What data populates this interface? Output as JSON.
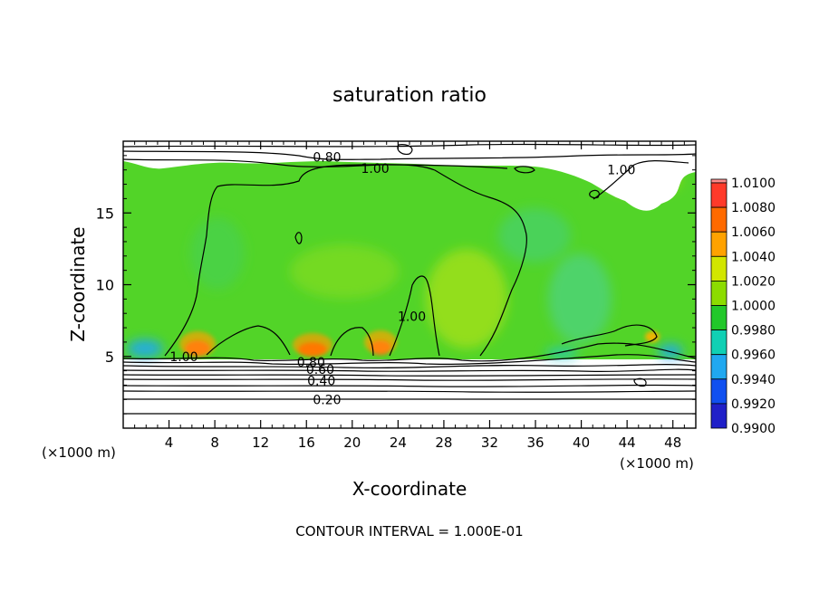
{
  "chart_data": {
    "type": "heatmap",
    "title": "saturation ratio",
    "xlabel": "X-coordinate",
    "ylabel": "Z-coordinate",
    "x_unit_left": "(×1000 m)",
    "x_unit_right": "(×1000 m)",
    "footer": "CONTOUR INTERVAL = 1.000E-01",
    "xlim": [
      0,
      50
    ],
    "ylim": [
      0,
      20
    ],
    "x_ticks": [
      4,
      8,
      12,
      16,
      20,
      24,
      28,
      32,
      36,
      40,
      44,
      48
    ],
    "y_ticks": [
      5,
      10,
      15
    ],
    "colorbar": {
      "levels": [
        "1.0100",
        "1.0080",
        "1.0060",
        "1.0040",
        "1.0020",
        "1.0000",
        "0.9980",
        "0.9960",
        "0.9940",
        "0.9920",
        "0.9900"
      ],
      "colors": [
        "#ff8c8c",
        "#ff3a2a",
        "#ff6a00",
        "#ffa200",
        "#d2e600",
        "#8cdc00",
        "#22c82a",
        "#10d0b4",
        "#20a8f0",
        "#1050f0",
        "#2020c8",
        "#7020a0"
      ]
    },
    "contour_labels": [
      {
        "text": "0.80",
        "x": 17.8,
        "y": 18.9
      },
      {
        "text": "1.00",
        "x": 22.0,
        "y": 18.1
      },
      {
        "text": "1.00",
        "x": 43.5,
        "y": 18.0
      },
      {
        "text": "1.00",
        "x": 25.2,
        "y": 7.8
      },
      {
        "text": "1.00",
        "x": 5.3,
        "y": 5.0
      },
      {
        "text": "0.80",
        "x": 16.4,
        "y": 4.6
      },
      {
        "text": "0.60",
        "x": 17.2,
        "y": 4.1
      },
      {
        "text": "0.40",
        "x": 17.3,
        "y": 3.3
      },
      {
        "text": "0.20",
        "x": 17.8,
        "y": 2.0
      }
    ]
  }
}
